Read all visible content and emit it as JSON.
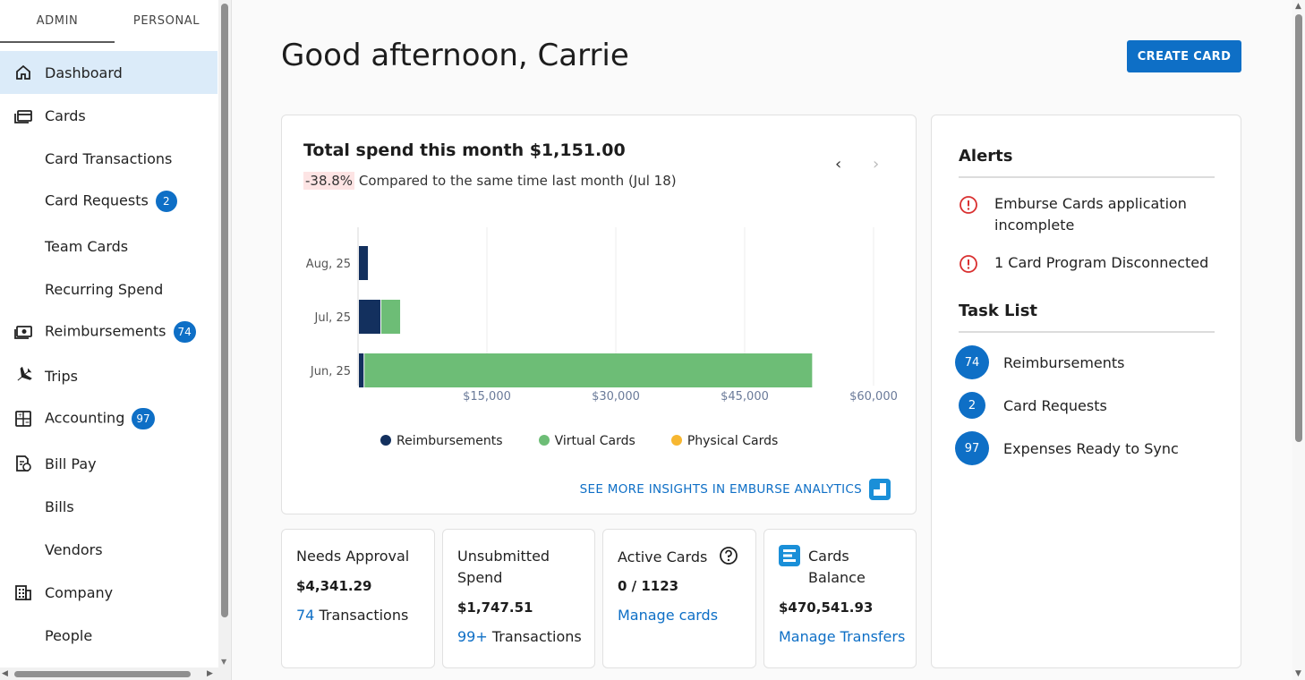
{
  "sidebar": {
    "tabs": [
      "ADMIN",
      "PERSONAL"
    ],
    "items": [
      {
        "label": "Dashboard",
        "icon": "home-icon",
        "badge": null
      },
      {
        "label": "Cards",
        "icon": "cards-icon",
        "badge": null
      },
      {
        "label": "Card Transactions",
        "icon": null,
        "badge": null
      },
      {
        "label": "Card Requests",
        "icon": null,
        "badge": "2"
      },
      {
        "label": "Team Cards",
        "icon": null,
        "badge": null
      },
      {
        "label": "Recurring Spend",
        "icon": null,
        "badge": null
      },
      {
        "label": "Reimbursements",
        "icon": "money-icon",
        "badge": "74"
      },
      {
        "label": "Trips",
        "icon": "plane-icon",
        "badge": null
      },
      {
        "label": "Accounting",
        "icon": "calculator-icon",
        "badge": "97"
      },
      {
        "label": "Bill Pay",
        "icon": "bill-icon",
        "badge": null
      },
      {
        "label": "Bills",
        "icon": null,
        "badge": null
      },
      {
        "label": "Vendors",
        "icon": null,
        "badge": null
      },
      {
        "label": "Company",
        "icon": "building-icon",
        "badge": null
      },
      {
        "label": "People",
        "icon": null,
        "badge": null
      }
    ]
  },
  "header": {
    "greeting": "Good afternoon, Carrie",
    "create_button": "CREATE CARD"
  },
  "spend": {
    "title": "Total spend this month $1,151.00",
    "pct": "-38.8%",
    "compare": " Compared to the same time last month (Jul 18)",
    "insights_link": "SEE MORE INSIGHTS IN EMBURSE ANALYTICS"
  },
  "chart_data": {
    "type": "bar",
    "orientation": "horizontal",
    "stacked": true,
    "categories": [
      "Aug, 25",
      "Jul, 25",
      "Jun, 25"
    ],
    "series": [
      {
        "name": "Reimbursements",
        "color": "#13305e",
        "values": [
          1151,
          2600,
          650
        ]
      },
      {
        "name": "Virtual Cards",
        "color": "#6dbd76",
        "values": [
          0,
          2300,
          52200
        ]
      },
      {
        "name": "Physical Cards",
        "color": "#f7b731",
        "values": [
          0,
          0,
          0
        ]
      }
    ],
    "xticks": [
      "$15,000",
      "$30,000",
      "$45,000",
      "$60,000"
    ],
    "xlim": [
      0,
      60000
    ],
    "legend": "bottom"
  },
  "alerts": {
    "title": "Alerts",
    "items": [
      "Emburse Cards application incomplete",
      "1 Card Program Disconnected"
    ]
  },
  "tasks": {
    "title": "Task List",
    "items": [
      {
        "count": "74",
        "label": "Reimbursements"
      },
      {
        "count": "2",
        "label": "Card Requests"
      },
      {
        "count": "97",
        "label": "Expenses Ready to Sync"
      }
    ]
  },
  "stats": {
    "needs_approval": {
      "title": "Needs Approval",
      "value": "$4,341.29",
      "count": "74",
      "link_suffix": " Transactions"
    },
    "unsubmitted": {
      "title": "Unsubmitted Spend",
      "value": "$1,747.51",
      "count": "99+",
      "link_suffix": " Transactions"
    },
    "active_cards": {
      "title": "Active Cards",
      "value": "0 / 1123",
      "link": "Manage cards"
    },
    "cards_balance": {
      "title": "Cards Balance",
      "value": "$470,541.93",
      "link": "Manage Transfers"
    }
  }
}
